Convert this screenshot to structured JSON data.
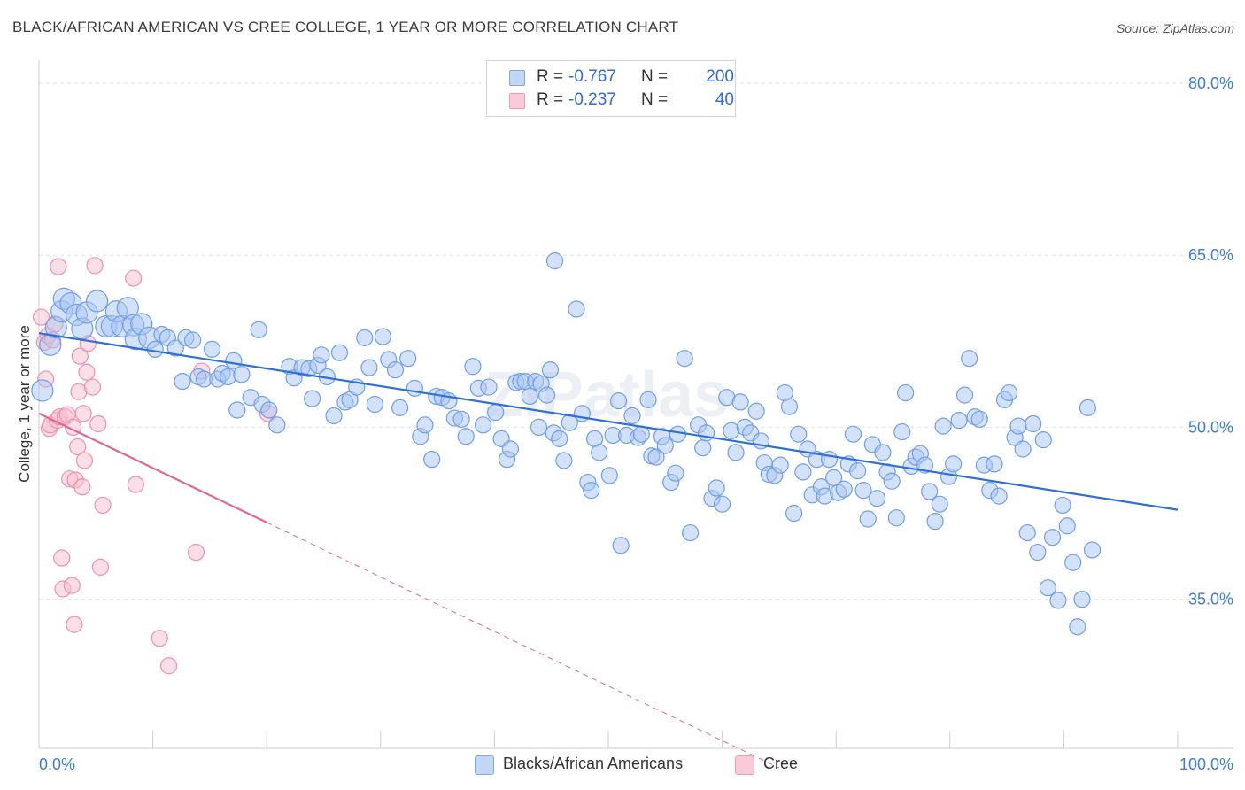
{
  "header": {
    "title": "BLACK/AFRICAN AMERICAN VS CREE COLLEGE, 1 YEAR OR MORE CORRELATION CHART",
    "source": "Source: ZipAtlas.com"
  },
  "legend": {
    "rows": [
      {
        "r_label": "R =",
        "r_value": "-0.767",
        "n_label": "N =",
        "n_value": "200",
        "color": "#9dbbef"
      },
      {
        "r_label": "R =",
        "r_value": "-0.237",
        "n_label": "N =",
        "n_value": "40",
        "color": "#f4a9bf"
      }
    ]
  },
  "bottom_legend": [
    {
      "label": "Blacks/African Americans",
      "color": "#9dbbef"
    },
    {
      "label": "Cree",
      "color": "#f4a9bf"
    }
  ],
  "watermark": "ZIPatlas",
  "chart_data": {
    "type": "scatter",
    "ylabel": "College, 1 year or more",
    "xlim": [
      0,
      100
    ],
    "ylim": [
      22,
      82
    ],
    "x_tick_labels": [
      "0.0%",
      "100.0%"
    ],
    "y_ticks": [
      35,
      50,
      65,
      80
    ],
    "y_tick_labels": [
      "35.0%",
      "50.0%",
      "65.0%",
      "80.0%"
    ],
    "grid": "horizontal dashed",
    "colors": {
      "blue_fill": "#a9c6f3",
      "blue_stroke": "#6f9ee6",
      "blue_line": "#2f6fd6",
      "pink_fill": "#f7bfd0",
      "pink_stroke": "#ee8fae",
      "pink_line": "#e36591",
      "axis_text": "#3f7bd4"
    },
    "series": [
      {
        "name": "Blacks/African Americans",
        "trend": {
          "x": [
            0,
            100
          ],
          "y": [
            58.2,
            42.8
          ]
        },
        "points": [
          [
            0.3,
            53.2
          ],
          [
            1.0,
            57.2
          ],
          [
            1.5,
            58.7
          ],
          [
            2.0,
            60.1
          ],
          [
            2.2,
            61.2
          ],
          [
            2.8,
            60.8
          ],
          [
            3.3,
            59.8
          ],
          [
            3.8,
            58.6
          ],
          [
            4.2,
            60.0
          ],
          [
            5.1,
            61.0
          ],
          [
            5.9,
            58.8
          ],
          [
            6.4,
            58.8
          ],
          [
            6.8,
            60.1
          ],
          [
            7.3,
            58.8
          ],
          [
            7.8,
            60.4
          ],
          [
            8.3,
            58.9
          ],
          [
            8.5,
            57.7
          ],
          [
            9.0,
            59.0
          ],
          [
            9.7,
            57.8
          ],
          [
            10.2,
            56.8
          ],
          [
            10.8,
            58.1
          ],
          [
            11.3,
            57.8
          ],
          [
            12.0,
            56.9
          ],
          [
            12.6,
            54.0
          ],
          [
            12.9,
            57.8
          ],
          [
            13.5,
            57.6
          ],
          [
            14.0,
            54.4
          ],
          [
            14.5,
            54.2
          ],
          [
            15.2,
            56.8
          ],
          [
            15.7,
            54.2
          ],
          [
            16.1,
            54.7
          ],
          [
            16.6,
            54.4
          ],
          [
            17.1,
            55.8
          ],
          [
            17.4,
            51.5
          ],
          [
            17.8,
            54.6
          ],
          [
            18.6,
            52.6
          ],
          [
            19.3,
            58.5
          ],
          [
            19.6,
            52.0
          ],
          [
            20.2,
            51.5
          ],
          [
            20.9,
            50.2
          ],
          [
            22.0,
            55.3
          ],
          [
            22.4,
            54.3
          ],
          [
            23.1,
            55.2
          ],
          [
            23.7,
            55.1
          ],
          [
            24.0,
            52.5
          ],
          [
            24.5,
            55.4
          ],
          [
            24.8,
            56.3
          ],
          [
            25.3,
            54.4
          ],
          [
            25.9,
            51.0
          ],
          [
            26.4,
            56.5
          ],
          [
            26.9,
            52.2
          ],
          [
            27.3,
            52.4
          ],
          [
            27.9,
            53.5
          ],
          [
            28.6,
            57.8
          ],
          [
            29.0,
            55.2
          ],
          [
            29.5,
            52.0
          ],
          [
            30.2,
            57.9
          ],
          [
            30.7,
            55.9
          ],
          [
            31.3,
            55.0
          ],
          [
            31.7,
            51.7
          ],
          [
            32.4,
            56.0
          ],
          [
            33.0,
            53.4
          ],
          [
            33.5,
            49.2
          ],
          [
            33.9,
            50.2
          ],
          [
            34.5,
            47.2
          ],
          [
            34.9,
            52.7
          ],
          [
            35.4,
            52.6
          ],
          [
            36.0,
            52.3
          ],
          [
            36.5,
            50.8
          ],
          [
            37.1,
            50.7
          ],
          [
            37.5,
            49.2
          ],
          [
            38.1,
            55.3
          ],
          [
            38.6,
            53.4
          ],
          [
            39.0,
            50.2
          ],
          [
            39.5,
            53.5
          ],
          [
            40.1,
            51.3
          ],
          [
            40.6,
            49.0
          ],
          [
            41.1,
            47.2
          ],
          [
            41.4,
            48.1
          ],
          [
            41.9,
            53.9
          ],
          [
            42.3,
            54.0
          ],
          [
            42.7,
            54.0
          ],
          [
            43.1,
            52.7
          ],
          [
            43.6,
            54.0
          ],
          [
            43.9,
            50.0
          ],
          [
            44.1,
            53.8
          ],
          [
            44.6,
            52.8
          ],
          [
            44.9,
            55.0
          ],
          [
            45.2,
            49.5
          ],
          [
            45.7,
            49.0
          ],
          [
            45.3,
            64.5
          ],
          [
            46.1,
            47.1
          ],
          [
            46.6,
            50.4
          ],
          [
            47.2,
            60.3
          ],
          [
            47.7,
            51.2
          ],
          [
            48.2,
            45.2
          ],
          [
            48.5,
            44.5
          ],
          [
            48.8,
            49.0
          ],
          [
            49.2,
            47.8
          ],
          [
            50.1,
            45.8
          ],
          [
            50.4,
            49.3
          ],
          [
            50.9,
            52.3
          ],
          [
            51.1,
            39.7
          ],
          [
            51.6,
            49.3
          ],
          [
            52.1,
            51.0
          ],
          [
            52.6,
            49.1
          ],
          [
            52.9,
            49.4
          ],
          [
            53.5,
            52.4
          ],
          [
            53.8,
            47.5
          ],
          [
            54.2,
            47.4
          ],
          [
            54.7,
            49.2
          ],
          [
            55.0,
            48.4
          ],
          [
            55.5,
            45.2
          ],
          [
            55.9,
            46.0
          ],
          [
            56.1,
            49.4
          ],
          [
            56.7,
            56.0
          ],
          [
            57.2,
            40.8
          ],
          [
            57.9,
            50.2
          ],
          [
            58.3,
            48.2
          ],
          [
            58.6,
            49.5
          ],
          [
            59.1,
            43.8
          ],
          [
            59.5,
            44.7
          ],
          [
            60.0,
            43.3
          ],
          [
            60.4,
            52.6
          ],
          [
            60.8,
            49.7
          ],
          [
            61.2,
            47.8
          ],
          [
            61.6,
            52.2
          ],
          [
            62.0,
            50.0
          ],
          [
            62.5,
            49.5
          ],
          [
            63.0,
            51.4
          ],
          [
            63.4,
            48.8
          ],
          [
            63.7,
            46.9
          ],
          [
            64.1,
            45.9
          ],
          [
            64.6,
            45.8
          ],
          [
            65.1,
            46.7
          ],
          [
            65.5,
            53.0
          ],
          [
            65.9,
            51.8
          ],
          [
            66.3,
            42.5
          ],
          [
            66.7,
            49.4
          ],
          [
            67.1,
            46.1
          ],
          [
            67.5,
            48.1
          ],
          [
            67.9,
            44.1
          ],
          [
            68.3,
            47.2
          ],
          [
            68.7,
            44.8
          ],
          [
            69.0,
            44.0
          ],
          [
            69.4,
            47.2
          ],
          [
            69.8,
            45.6
          ],
          [
            70.2,
            44.3
          ],
          [
            70.7,
            44.6
          ],
          [
            71.1,
            46.8
          ],
          [
            71.5,
            49.4
          ],
          [
            71.9,
            46.2
          ],
          [
            72.4,
            44.5
          ],
          [
            72.8,
            42.0
          ],
          [
            73.2,
            48.5
          ],
          [
            73.6,
            43.8
          ],
          [
            74.1,
            47.8
          ],
          [
            74.5,
            46.1
          ],
          [
            74.9,
            45.3
          ],
          [
            75.3,
            42.1
          ],
          [
            75.8,
            49.6
          ],
          [
            76.1,
            53.0
          ],
          [
            76.6,
            46.6
          ],
          [
            77.0,
            47.4
          ],
          [
            77.4,
            47.7
          ],
          [
            77.8,
            46.7
          ],
          [
            78.2,
            44.4
          ],
          [
            78.7,
            41.8
          ],
          [
            79.1,
            43.3
          ],
          [
            79.4,
            50.1
          ],
          [
            79.9,
            45.7
          ],
          [
            80.3,
            46.8
          ],
          [
            80.8,
            50.6
          ],
          [
            81.3,
            52.8
          ],
          [
            81.7,
            56.0
          ],
          [
            82.2,
            50.9
          ],
          [
            82.6,
            50.7
          ],
          [
            83.0,
            46.7
          ],
          [
            83.5,
            44.5
          ],
          [
            83.9,
            46.8
          ],
          [
            84.3,
            44.0
          ],
          [
            84.8,
            52.4
          ],
          [
            85.2,
            53.0
          ],
          [
            85.7,
            49.1
          ],
          [
            86.0,
            50.1
          ],
          [
            86.4,
            48.1
          ],
          [
            86.8,
            40.8
          ],
          [
            87.3,
            50.3
          ],
          [
            87.7,
            39.1
          ],
          [
            88.2,
            48.9
          ],
          [
            88.6,
            36.0
          ],
          [
            89.0,
            40.4
          ],
          [
            89.5,
            34.9
          ],
          [
            89.9,
            43.2
          ],
          [
            90.3,
            41.4
          ],
          [
            90.8,
            38.2
          ],
          [
            91.2,
            32.6
          ],
          [
            91.6,
            35.0
          ],
          [
            92.1,
            51.7
          ],
          [
            92.5,
            39.3
          ]
        ]
      },
      {
        "name": "Cree",
        "trend": {
          "x": [
            0,
            20
          ],
          "y": [
            51.2,
            41.7
          ]
        },
        "trend_extension": {
          "x": [
            20,
            65
          ],
          "y": [
            41.7,
            20.3
          ]
        },
        "points": [
          [
            0.2,
            59.6
          ],
          [
            0.5,
            57.4
          ],
          [
            0.6,
            54.2
          ],
          [
            0.8,
            58.0
          ],
          [
            0.9,
            49.9
          ],
          [
            1.0,
            50.2
          ],
          [
            1.2,
            57.6
          ],
          [
            1.4,
            59.0
          ],
          [
            1.6,
            50.6
          ],
          [
            1.8,
            50.9
          ],
          [
            1.7,
            64.0
          ],
          [
            2.0,
            38.6
          ],
          [
            2.1,
            35.9
          ],
          [
            2.3,
            50.9
          ],
          [
            2.5,
            51.1
          ],
          [
            2.7,
            45.5
          ],
          [
            2.9,
            36.2
          ],
          [
            3.0,
            50.0
          ],
          [
            3.1,
            32.8
          ],
          [
            3.2,
            45.4
          ],
          [
            3.4,
            48.3
          ],
          [
            3.5,
            53.1
          ],
          [
            3.6,
            56.2
          ],
          [
            3.8,
            44.8
          ],
          [
            3.9,
            51.2
          ],
          [
            4.0,
            47.1
          ],
          [
            4.2,
            54.8
          ],
          [
            4.3,
            57.3
          ],
          [
            4.7,
            53.5
          ],
          [
            4.9,
            64.1
          ],
          [
            5.2,
            50.3
          ],
          [
            5.4,
            37.8
          ],
          [
            5.6,
            43.2
          ],
          [
            8.3,
            63.0
          ],
          [
            8.5,
            45.0
          ],
          [
            10.6,
            31.6
          ],
          [
            11.4,
            29.2
          ],
          [
            13.8,
            39.1
          ],
          [
            14.3,
            54.9
          ],
          [
            20.1,
            51.2
          ]
        ]
      }
    ]
  }
}
